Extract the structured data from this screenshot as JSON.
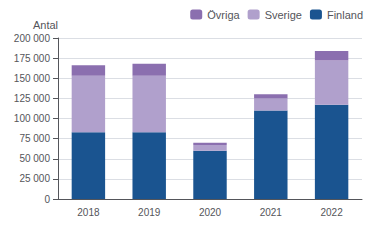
{
  "chart_data": {
    "type": "bar",
    "stacked": true,
    "categories": [
      "2018",
      "2019",
      "2020",
      "2021",
      "2022"
    ],
    "series": [
      {
        "name": "Finland",
        "color": "#1A5490",
        "values": [
          83000,
          83000,
          60000,
          110000,
          117000
        ]
      },
      {
        "name": "Sverige",
        "color": "#B0A0CC",
        "values": [
          70000,
          70000,
          7000,
          15000,
          55000
        ]
      },
      {
        "name": "Övriga",
        "color": "#8B6FAF",
        "values": [
          13000,
          15000,
          3000,
          5000,
          12000
        ]
      }
    ],
    "ylabel": "Antal",
    "ylim": [
      0,
      200000
    ],
    "yticks": [
      0,
      {
        "value": 25000,
        "label": "25 000"
      },
      {
        "value": 50000,
        "label": "50 000"
      },
      {
        "value": 75000,
        "label": "75 000"
      },
      {
        "value": 100000,
        "label": "100 000"
      },
      {
        "value": 125000,
        "label": "125 000"
      },
      {
        "value": 150000,
        "label": "150 000"
      },
      {
        "value": 175000,
        "label": "175 000"
      },
      {
        "value": 200000,
        "label": "200 000"
      }
    ],
    "grid": true,
    "legend": "upper right"
  }
}
